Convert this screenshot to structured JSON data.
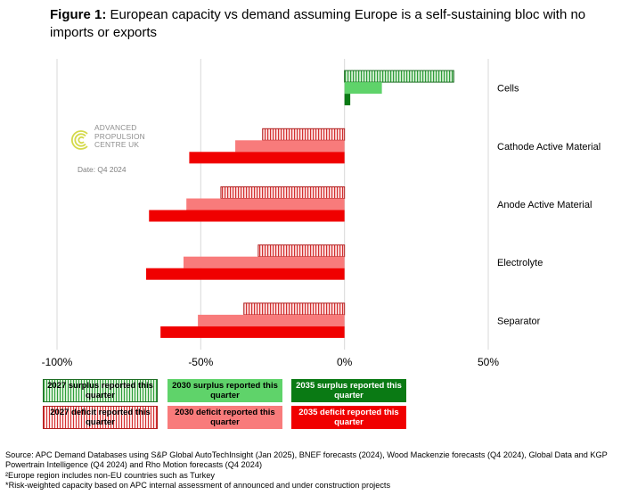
{
  "title": {
    "prefix": "Figure 1:",
    "text": "European capacity vs demand assuming Europe is a self-sustaining bloc with no imports or exports"
  },
  "logo": {
    "text_lines": [
      "ADVANCED",
      "PROPULSION",
      "CENTRE UK"
    ],
    "date": "Date: Q4 2024"
  },
  "colors": {
    "surplus_2027_fill": "#d7efd5",
    "surplus_2027_stripe": "#2e9e3a",
    "surplus_2030": "#5fd36a",
    "surplus_2035": "#0a7a14",
    "deficit_2027_fill": "#fde3e3",
    "deficit_2027_stripe": "#d33030",
    "deficit_2030": "#f87b7b",
    "deficit_2035": "#f00000",
    "gridline": "#d9d9d9"
  },
  "chart_data": {
    "type": "bar",
    "orientation": "horizontal",
    "title": "European capacity vs demand assuming Europe is a self-sustaining bloc with no imports or exports",
    "categories": [
      "Cells",
      "Cathode Active Material",
      "Anode Active Material",
      "Electrolyte",
      "Separator"
    ],
    "series": [
      {
        "name": "2027",
        "values": [
          38,
          -28.5,
          -43,
          -30,
          -35
        ]
      },
      {
        "name": "2030",
        "values": [
          13,
          -38,
          -55,
          -56,
          -51
        ]
      },
      {
        "name": "2035",
        "values": [
          2,
          -54,
          -68,
          -69,
          -64
        ]
      }
    ],
    "xlim": [
      -100,
      50
    ],
    "xticks": [
      "-100%",
      "-50%",
      "0%",
      "50%"
    ],
    "xtick_values": [
      -100,
      -50,
      0,
      50
    ],
    "xlabel": "",
    "ylabel": "",
    "grid": true,
    "legend": [
      [
        "2027 surplus reported this quarter",
        "2030 surplus reported this quarter",
        "2035 surplus reported this quarter"
      ],
      [
        "2027 deficit reported this quarter",
        "2030 deficit reported this quarter",
        "2035 deficit reported this quarter"
      ]
    ]
  },
  "footer": {
    "source": "Source: APC Demand Databases using S&P Global AutoTechInsight (Jan 2025), BNEF forecasts (2024), Wood Mackenzie forecasts (Q4 2024), Global Data and KGP",
    "source_cont": "Powertrain Intelligence (Q4 2024) and Rho Motion forecasts (Q4 2024)",
    "note1": "²Europe region includes non-EU countries such as Turkey",
    "note2": "*Risk-weighted capacity based on APC internal assessment of announced and under construction projects"
  }
}
